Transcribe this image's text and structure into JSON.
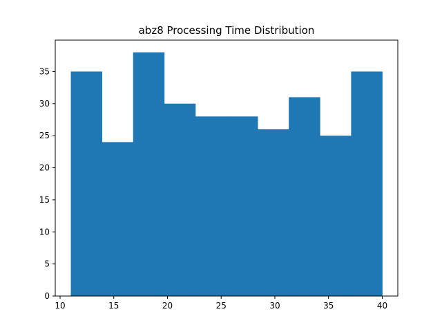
{
  "chart_data": {
    "type": "bar",
    "title": "abz8 Processing Time Distribution",
    "xlabel": "",
    "ylabel": "",
    "bin_edges": [
      11,
      13.9,
      16.8,
      19.7,
      22.6,
      25.5,
      28.4,
      31.3,
      34.2,
      37.1,
      40
    ],
    "values": [
      35,
      24,
      38,
      30,
      28,
      28,
      26,
      31,
      25,
      35
    ],
    "xlim": [
      9.55,
      41.45
    ],
    "ylim": [
      0,
      39.9
    ],
    "xticks": [
      10,
      15,
      20,
      25,
      30,
      35,
      40
    ],
    "yticks": [
      0,
      5,
      10,
      15,
      20,
      25,
      30,
      35
    ],
    "bar_color": "#1f77b4",
    "grid": false
  }
}
